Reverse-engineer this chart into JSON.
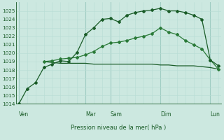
{
  "title": "Pression niveau de la mer( hPa )",
  "background_color": "#cce8e0",
  "grid_color_minor": "#b8ddd5",
  "grid_color_major": "#9fccc2",
  "line_color_dark": "#1a5c28",
  "line_color_mid": "#2a7a38",
  "ylim": [
    1014,
    1026
  ],
  "ytick_min": 1014,
  "ytick_max": 1025,
  "day_labels": [
    "Ven",
    "Mar",
    "Sam",
    "Dim",
    "Lun"
  ],
  "day_x": [
    0,
    8,
    11,
    17,
    23
  ],
  "n_points": 25,
  "s1_x": [
    0,
    1,
    2,
    3,
    4,
    5,
    6,
    7,
    8,
    9,
    10,
    11,
    12,
    13,
    14,
    15,
    16,
    17,
    18,
    19,
    20,
    21,
    22,
    23,
    24
  ],
  "s1_y": [
    1014.0,
    1015.8,
    1016.5,
    1018.3,
    1018.7,
    1019.1,
    1019.0,
    1020.1,
    1022.2,
    1023.0,
    1024.0,
    1024.1,
    1023.7,
    1024.5,
    1024.8,
    1025.0,
    1025.1,
    1025.3,
    1025.0,
    1025.0,
    1024.8,
    1024.5,
    1024.0,
    1019.2,
    1018.5
  ],
  "s2_x": [
    3,
    4,
    5,
    6,
    7,
    8,
    9,
    10,
    11,
    12,
    13,
    14,
    15,
    16,
    17,
    18,
    19,
    20,
    21,
    22,
    23,
    24
  ],
  "s2_y": [
    1019.0,
    1019.1,
    1019.3,
    1019.4,
    1019.5,
    1019.8,
    1020.2,
    1020.8,
    1021.2,
    1021.3,
    1021.5,
    1021.8,
    1022.0,
    1022.3,
    1023.0,
    1022.5,
    1022.2,
    1021.5,
    1021.0,
    1020.5,
    1019.2,
    1018.1
  ],
  "s3_x": [
    3,
    4,
    5,
    6,
    7,
    8,
    9,
    10,
    11,
    12,
    13,
    14,
    15,
    16,
    17,
    18,
    19,
    20,
    21,
    22,
    23,
    24
  ],
  "s3_y": [
    1019.0,
    1018.9,
    1018.8,
    1018.8,
    1018.8,
    1018.8,
    1018.7,
    1018.7,
    1018.7,
    1018.7,
    1018.7,
    1018.7,
    1018.7,
    1018.7,
    1018.6,
    1018.6,
    1018.5,
    1018.5,
    1018.5,
    1018.4,
    1018.3,
    1018.1
  ]
}
